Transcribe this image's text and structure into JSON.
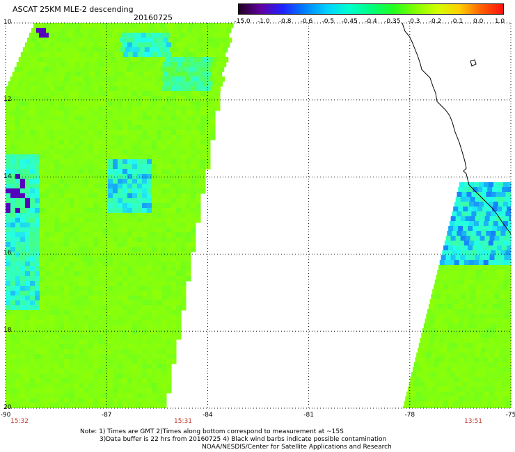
{
  "header": {
    "title": "ASCAT 25KM MLE-2 descending",
    "date": "20160725"
  },
  "colorbar": {
    "labels": [
      "-15.0",
      "-1.0",
      "-0.8",
      "-0.6",
      "-0.5",
      "-0.45",
      "-0.4",
      "-0.35",
      "-0.3",
      "-0.2",
      "-0.1",
      "0.0",
      "1.0"
    ],
    "stops": [
      "#200020",
      "#6000a0",
      "#2020ff",
      "#0080ff",
      "#00d0ff",
      "#00ffd0",
      "#00ff80",
      "#20ff20",
      "#80ff00",
      "#d0ff00",
      "#ffd000",
      "#ff6000",
      "#ff1010"
    ]
  },
  "map": {
    "lat_labels": [
      "10",
      "12",
      "14",
      "16",
      "18",
      "20"
    ],
    "lon_labels": [
      "-90",
      "-87",
      "-84",
      "-81",
      "-78",
      "-75"
    ],
    "time_labels": [
      "15:32",
      "15:31",
      "13:51"
    ],
    "colors": {
      "swath_base": "#66ff22",
      "swath_high": "#99ff00",
      "cyan": "#22ffee",
      "blue": "#1155ff",
      "purple": "#5500bb",
      "coastline": "#000000"
    }
  },
  "notes": {
    "line1": "Note: 1) Times are GMT 2)Times along bottom correspond to measurement at ~15S",
    "line2": "3)Data buffer is 22 hrs from 20160725 4) Black wind barbs indicate possible contamination",
    "line3": "NOAA/NESDIS/Center for Satellite Applications and Research"
  }
}
